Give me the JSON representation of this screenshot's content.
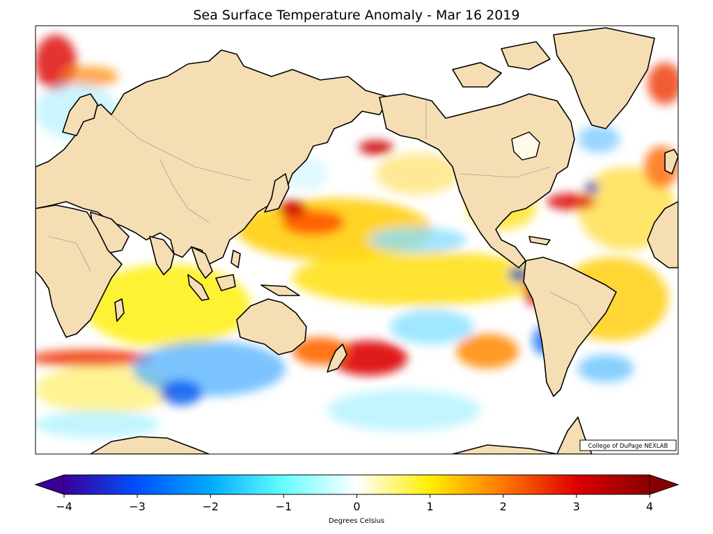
{
  "map": {
    "title": "Sea Surface Temperature Anomaly - Mar 16 2019",
    "credit": "College of DuPage NEXLAB",
    "projection": "Mercator, Pacific-centered",
    "land_color": "#f5deb3"
  },
  "colorbar": {
    "label": "Degrees Celsius",
    "range": [
      -4,
      4
    ],
    "ticks": [
      "−4",
      "−3",
      "−2",
      "−1",
      "0",
      "1",
      "2",
      "3",
      "4"
    ],
    "tick_values": [
      -4,
      -3,
      -2,
      -1,
      0,
      1,
      2,
      3,
      4
    ],
    "extend": "both",
    "stops": [
      {
        "value": -4,
        "color": "#3a0097"
      },
      {
        "value": -3,
        "color": "#0050ff"
      },
      {
        "value": -2,
        "color": "#00aaff"
      },
      {
        "value": -1,
        "color": "#66ffff"
      },
      {
        "value": 0,
        "color": "#ffffff"
      },
      {
        "value": 1,
        "color": "#ffee00"
      },
      {
        "value": 2,
        "color": "#ff7700"
      },
      {
        "value": 3,
        "color": "#dd0000"
      },
      {
        "value": 4,
        "color": "#880000"
      }
    ]
  }
}
